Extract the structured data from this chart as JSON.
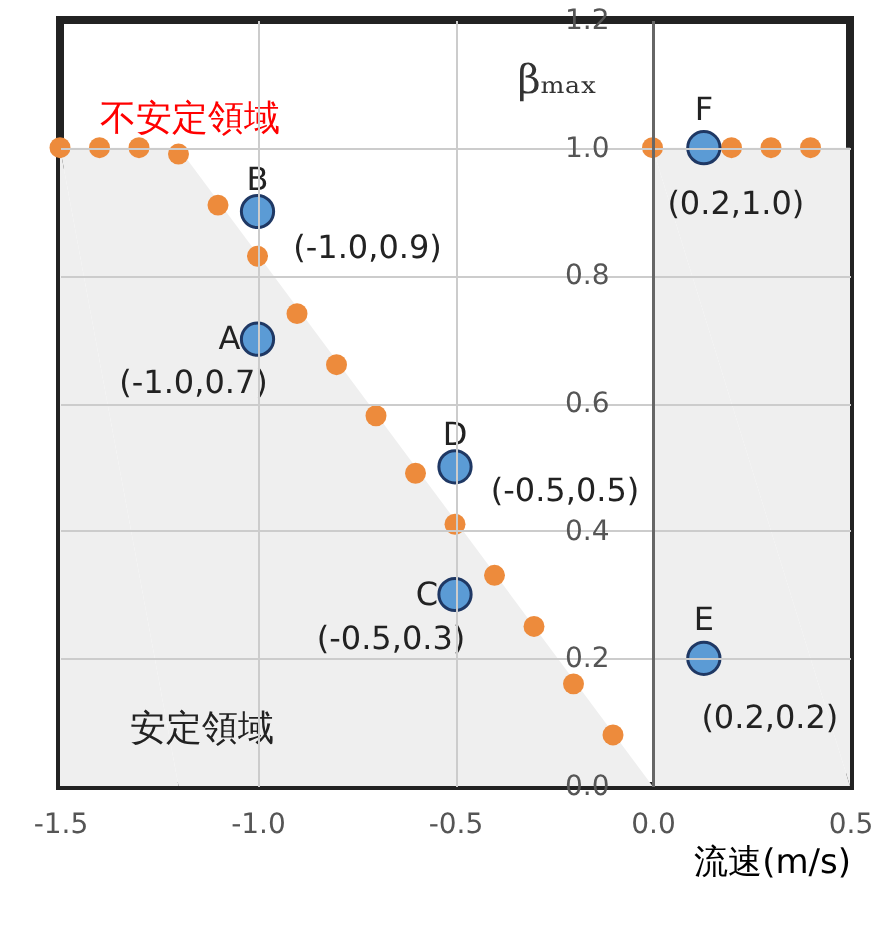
{
  "chart_data": {
    "type": "scatter",
    "xlabel": "流速(m/s)",
    "ylabel": "βₘₐₓ",
    "xlim": [
      -1.5,
      0.5
    ],
    "xticks": [
      {
        "value": -1.5,
        "label": "-1.5"
      },
      {
        "value": -1.0,
        "label": "-1.0"
      },
      {
        "value": -0.5,
        "label": "-0.5"
      },
      {
        "value": 0.0,
        "label": "0.0"
      },
      {
        "value": 0.5,
        "label": "0.5"
      }
    ],
    "ylim": [
      0,
      1.2
    ],
    "yticks": [
      {
        "value": 0.0,
        "label": "0.0"
      },
      {
        "value": 0.2,
        "label": "0.2"
      },
      {
        "value": 0.4,
        "label": "0.4"
      },
      {
        "value": 0.6,
        "label": "0.6"
      },
      {
        "value": 0.8,
        "label": "0.8"
      },
      {
        "value": 1.0,
        "label": "1.0"
      },
      {
        "value": 1.2,
        "label": "1.2"
      }
    ],
    "grid": true,
    "marker": "circle",
    "series": [
      {
        "type": "area",
        "marker": "none",
        "color": "#efefef",
        "x": [
          -1.5,
          -1.2,
          0.0
        ],
        "values": [
          1.0,
          1.0,
          0.0
        ]
      },
      {
        "type": "area",
        "marker": "none",
        "color": "#efefef",
        "x": [
          0.0,
          0.5
        ],
        "values": [
          1.0,
          1.0
        ]
      },
      {
        "color": "#ed8b3c",
        "x": [
          -1.5,
          -1.4,
          -1.3,
          -1.2,
          -1.1,
          -1.0,
          -0.9,
          -0.8,
          -0.7,
          -0.6,
          -0.5,
          -0.4,
          -0.3,
          -0.2,
          -0.1,
          0.0,
          0.1,
          0.2,
          0.3,
          0.4
        ],
        "values": [
          1.0,
          1.0,
          1.0,
          0.99,
          0.91,
          0.83,
          0.74,
          0.66,
          0.58,
          0.49,
          0.41,
          0.33,
          0.25,
          0.16,
          0.08,
          1.0,
          null,
          1.0,
          1.0,
          1.0
        ]
      },
      {
        "color": "#5b9bd5",
        "x": [
          -1.0,
          -1.0,
          -0.5,
          -0.5,
          0.13,
          0.13
        ],
        "values": [
          0.7,
          0.9,
          0.3,
          0.5,
          0.2,
          1.0
        ]
      }
    ],
    "annotations": [
      {
        "text": "A",
        "x": -1.0,
        "y": 0.7
      },
      {
        "text": "B",
        "x": -1.0,
        "y": 0.9
      },
      {
        "text": "C",
        "x": -0.5,
        "y": 0.3
      },
      {
        "text": "D",
        "x": -0.5,
        "y": 0.5
      },
      {
        "text": "E",
        "x": 0.13,
        "y": 0.2
      },
      {
        "text": "F",
        "x": 0.13,
        "y": 1.0
      },
      {
        "text": "(-1.0,0.7)",
        "x": -1.0,
        "y": 0.7
      },
      {
        "text": "(-1.0,0.9)",
        "x": -1.0,
        "y": 0.9
      },
      {
        "text": "(-0.5,0.3)",
        "x": -0.5,
        "y": 0.3
      },
      {
        "text": "(-0.5,0.5)",
        "x": -0.5,
        "y": 0.5
      },
      {
        "text": "(0.2,0.2)",
        "x": 0.13,
        "y": 0.2
      },
      {
        "text": "(0.2,1.0)",
        "x": 0.13,
        "y": 1.0
      },
      "不安定領域",
      "安定領域"
    ]
  }
}
